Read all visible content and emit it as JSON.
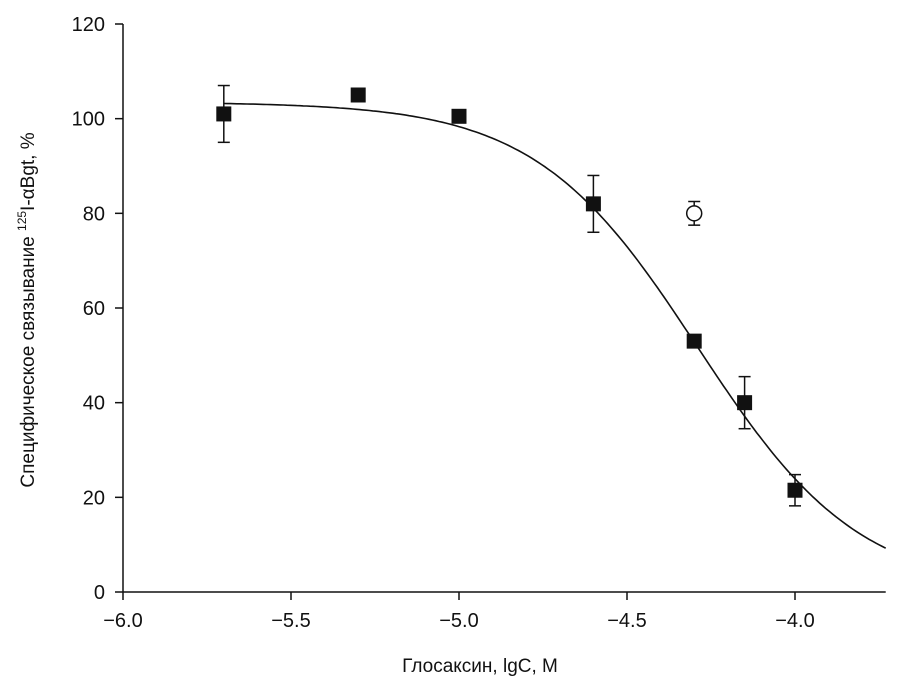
{
  "chart_data": {
    "type": "scatter",
    "title": "",
    "xlabel": "Глосаксин, lgC, M",
    "ylabel_main": "Специфическое связывание ",
    "ylabel_sup": "125",
    "ylabel_tail": "I-αBgt, %",
    "xlim": [
      -6.0,
      -3.73
    ],
    "ylim": [
      0,
      120
    ],
    "xticks": [
      -6.0,
      -5.5,
      -5.0,
      -4.5,
      -4.0
    ],
    "xtick_labels": [
      "−6.0",
      "−5.5",
      "−5.0",
      "−4.5",
      "−4.0"
    ],
    "yticks": [
      0,
      20,
      40,
      60,
      80,
      100,
      120
    ],
    "ytick_labels": [
      "0",
      "20",
      "40",
      "60",
      "80",
      "100",
      "120"
    ],
    "grid": false,
    "series": [
      {
        "name": "filled squares",
        "marker": "square-filled",
        "points": [
          {
            "x": -5.7,
            "y": 101,
            "err": 6
          },
          {
            "x": -5.3,
            "y": 105,
            "err": 0
          },
          {
            "x": -5.0,
            "y": 100.5,
            "err": 1
          },
          {
            "x": -4.6,
            "y": 82,
            "err": 6
          },
          {
            "x": -4.3,
            "y": 53,
            "err": 0
          },
          {
            "x": -4.15,
            "y": 40,
            "err": 5.5
          },
          {
            "x": -4.0,
            "y": 21.5,
            "err": 3.3
          }
        ]
      },
      {
        "name": "open circle",
        "marker": "circle-open",
        "points": [
          {
            "x": -4.3,
            "y": 80,
            "err": 2.5
          }
        ]
      }
    ],
    "fit_curve": {
      "type": "sigmoid",
      "top": 103.5,
      "bottom": 0,
      "log_ic50": -4.29,
      "hill": 1.8,
      "x_range": [
        -5.7,
        -3.73
      ]
    },
    "colors": {
      "marks": "#111111"
    }
  }
}
